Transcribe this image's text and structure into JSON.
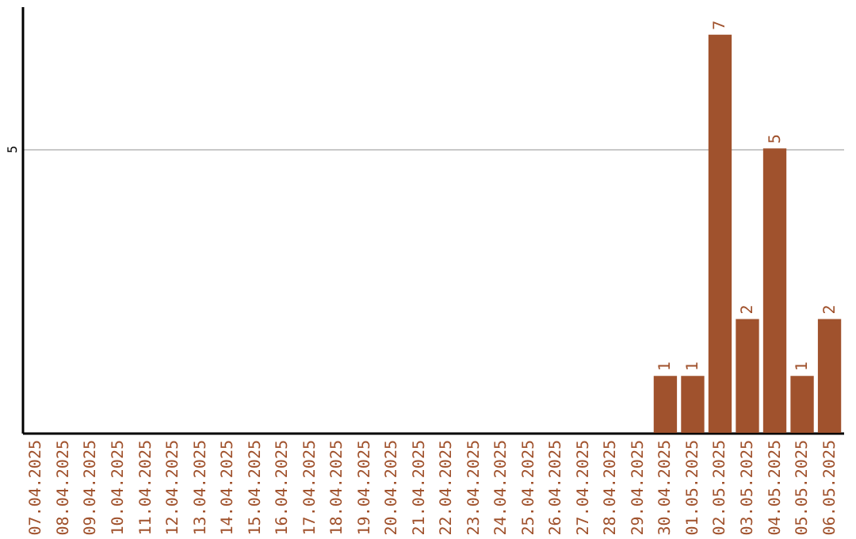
{
  "chart_data": {
    "type": "bar",
    "categories": [
      "07.04.2025",
      "08.04.2025",
      "09.04.2025",
      "10.04.2025",
      "11.04.2025",
      "12.04.2025",
      "13.04.2025",
      "14.04.2025",
      "15.04.2025",
      "16.04.2025",
      "17.04.2025",
      "18.04.2025",
      "19.04.2025",
      "20.04.2025",
      "21.04.2025",
      "22.04.2025",
      "23.04.2025",
      "24.04.2025",
      "25.04.2025",
      "26.04.2025",
      "27.04.2025",
      "28.04.2025",
      "29.04.2025",
      "30.04.2025",
      "01.05.2025",
      "02.05.2025",
      "03.05.2025",
      "04.05.2025",
      "05.05.2025",
      "06.05.2025"
    ],
    "values": [
      null,
      null,
      null,
      null,
      null,
      null,
      null,
      null,
      null,
      null,
      null,
      null,
      null,
      null,
      null,
      null,
      null,
      null,
      null,
      null,
      null,
      null,
      null,
      1,
      1,
      7,
      2,
      5,
      1,
      2
    ],
    "value_labels": [
      null,
      null,
      null,
      null,
      null,
      null,
      null,
      null,
      null,
      null,
      null,
      null,
      null,
      null,
      null,
      null,
      null,
      null,
      null,
      null,
      null,
      null,
      null,
      "1",
      "1",
      "7",
      "2",
      "5",
      "1",
      "2"
    ],
    "color": "#a0522d",
    "ylim": [
      0,
      7.5
    ],
    "yticks": [
      {
        "value": 0,
        "label": null
      },
      5
    ],
    "grid": "y"
  }
}
